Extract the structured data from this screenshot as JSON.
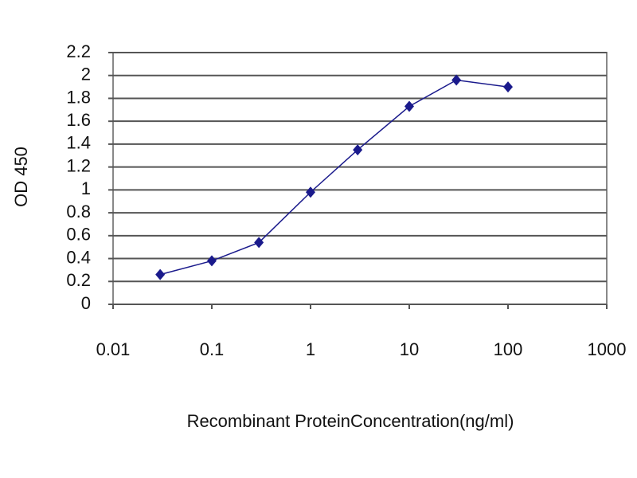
{
  "chart_data": {
    "type": "line",
    "xlabel": "Recombinant ProteinConcentration(ng/ml)",
    "ylabel": "OD 450",
    "x": [
      0.03,
      0.1,
      0.3,
      1,
      3,
      10,
      30,
      100
    ],
    "values": [
      0.26,
      0.38,
      0.54,
      0.98,
      1.35,
      1.73,
      1.96,
      1.9
    ],
    "color": "#1a1a8c",
    "xscale": "log",
    "xlim": [
      0.01,
      1000
    ],
    "xticks": [
      0.01,
      0.1,
      1,
      10,
      100,
      1000
    ],
    "ylim": [
      0,
      2.2
    ],
    "yticks": [
      0,
      0.2,
      0.4,
      0.6,
      0.8,
      1,
      1.2,
      1.4,
      1.6,
      1.8,
      2,
      2.2
    ],
    "grid": true
  }
}
